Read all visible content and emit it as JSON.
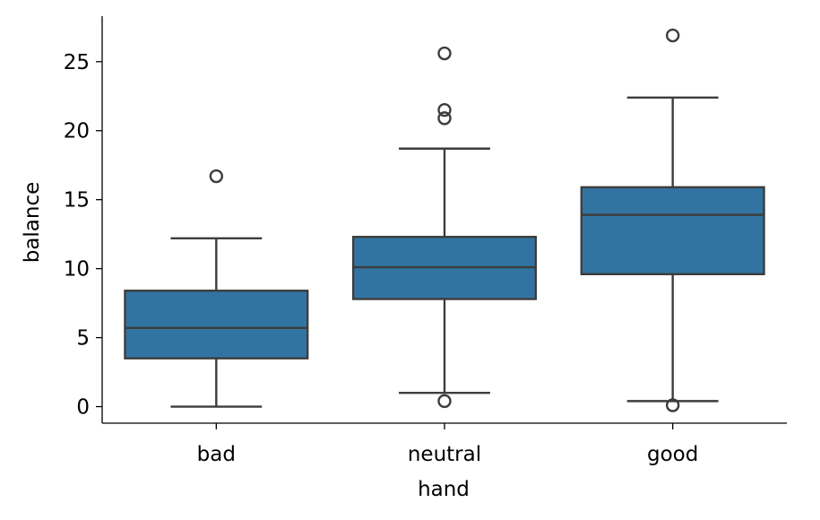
{
  "chart_data": {
    "type": "box",
    "xlabel": "hand",
    "ylabel": "balance",
    "categories": [
      "bad",
      "neutral",
      "good"
    ],
    "ylim": [
      -1.2,
      28.3
    ],
    "yticks": [
      0,
      5,
      10,
      15,
      20,
      25
    ],
    "ytick_labels": [
      "0",
      "5",
      "10",
      "15",
      "20",
      "25"
    ],
    "grid": false,
    "box_color": "#3274a1",
    "line_color": "#3d3d3d",
    "boxes": [
      {
        "category": "bad",
        "whisker_low": 0.0,
        "q1": 3.5,
        "median": 5.7,
        "q3": 8.4,
        "whisker_high": 12.2,
        "outliers": [
          16.7
        ]
      },
      {
        "category": "neutral",
        "whisker_low": 1.0,
        "q1": 7.8,
        "median": 10.1,
        "q3": 12.3,
        "whisker_high": 18.7,
        "outliers": [
          0.4,
          20.9,
          21.5,
          25.6
        ]
      },
      {
        "category": "good",
        "whisker_low": 0.4,
        "q1": 9.6,
        "median": 13.9,
        "q3": 15.9,
        "whisker_high": 22.4,
        "outliers": [
          0.1,
          26.9
        ]
      }
    ]
  }
}
